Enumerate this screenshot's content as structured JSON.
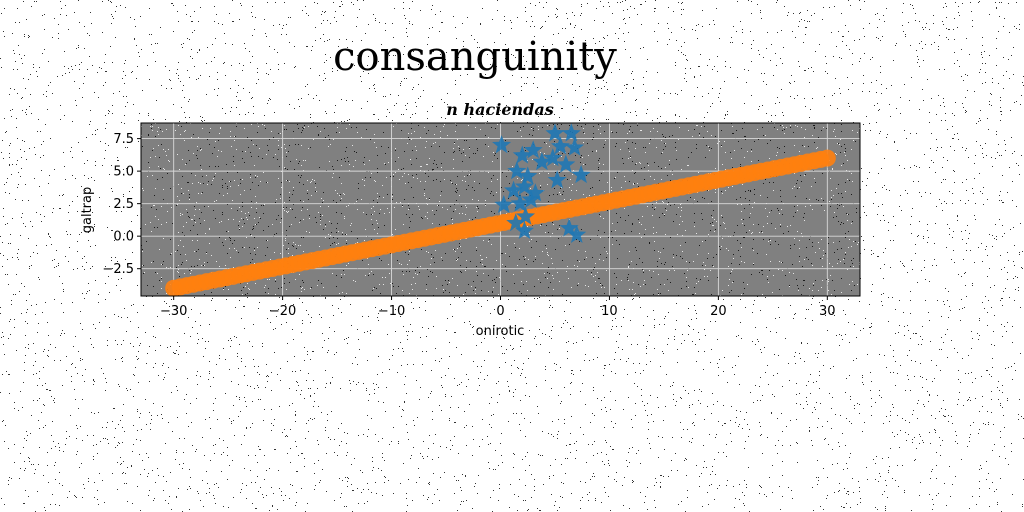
{
  "figure": {
    "suptitle": "consanguinity"
  },
  "chart_data": {
    "type": "scatter",
    "title": "n haciendas",
    "xlabel": "onirotic",
    "ylabel": "galtrap",
    "xlim": [
      -33,
      33
    ],
    "ylim": [
      -4.6,
      8.7
    ],
    "xticks": [
      -30,
      -20,
      -10,
      0,
      10,
      20,
      30
    ],
    "yticks": [
      -2.5,
      0.0,
      2.5,
      5.0,
      7.5
    ],
    "xtick_labels": [
      "−30",
      "−20",
      "−10",
      "0",
      "10",
      "20",
      "30"
    ],
    "ytick_labels": [
      "−2.5",
      "0.0",
      "2.5",
      "5.0",
      "7.5"
    ],
    "grid": true,
    "plot_background": "#808080",
    "series": [
      {
        "marker": "star",
        "color": "#1f77b4",
        "points": [
          [
            0.1,
            7.0
          ],
          [
            2.0,
            6.2
          ],
          [
            3.0,
            6.6
          ],
          [
            5.0,
            7.9
          ],
          [
            6.5,
            7.9
          ],
          [
            5.5,
            6.9
          ],
          [
            6.8,
            6.8
          ],
          [
            4.8,
            6.0
          ],
          [
            3.8,
            5.7
          ],
          [
            1.5,
            5.0
          ],
          [
            6.0,
            5.5
          ],
          [
            2.5,
            4.6
          ],
          [
            5.2,
            4.3
          ],
          [
            7.4,
            4.7
          ],
          [
            1.2,
            3.5
          ],
          [
            2.2,
            3.8
          ],
          [
            3.2,
            3.3
          ],
          [
            0.3,
            2.4
          ],
          [
            1.8,
            2.5
          ],
          [
            2.8,
            2.8
          ],
          [
            2.3,
            1.5
          ],
          [
            1.4,
            1.0
          ],
          [
            2.2,
            0.4
          ],
          [
            6.3,
            0.6
          ],
          [
            7.0,
            0.1
          ]
        ]
      },
      {
        "marker": "circle",
        "color": "#ff7f0e",
        "x_range": [
          -30,
          30
        ],
        "y_range": [
          -4.0,
          6.0
        ],
        "n_points": 100
      }
    ]
  }
}
